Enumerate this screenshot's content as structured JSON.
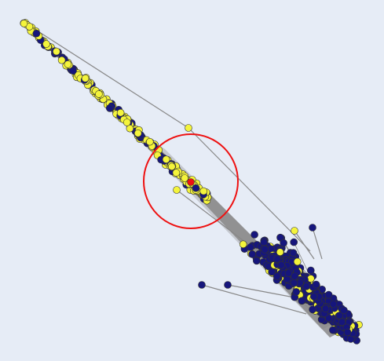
{
  "diagram": {
    "groups": [
      {
        "color": "#f4f43c"
      },
      {
        "color": "#16167c"
      }
    ],
    "edge_color": "#888888",
    "highlight": {
      "color": "#ee1111"
    }
  }
}
